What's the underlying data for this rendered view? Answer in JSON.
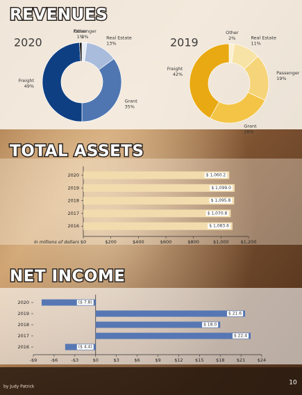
{
  "chart_data": [
    {
      "type": "donut",
      "section_title": "REVENUES",
      "title": "2020",
      "categories": [
        "Passenger",
        "Real Estate",
        "Grant",
        "Freight",
        "Other"
      ],
      "values": [
        2,
        13,
        35,
        49,
        1
      ],
      "value_labels": [
        "2%",
        "13%",
        "35%",
        "49%",
        "1%"
      ],
      "colors": [
        "#e6ecf5",
        "#a9bcdc",
        "#4f76b1",
        "#0e3f83",
        "#1c1c1c"
      ]
    },
    {
      "type": "donut",
      "title": "2019",
      "categories": [
        "Other",
        "Real Estate",
        "Passenger",
        "Grant",
        "Freight"
      ],
      "values": [
        2,
        11,
        19,
        26,
        42
      ],
      "value_labels": [
        "2%",
        "11%",
        "19%",
        "26%",
        "42%"
      ],
      "colors": [
        "#fbefd0",
        "#f8e3a6",
        "#f6d47a",
        "#f3c446",
        "#e9a912"
      ]
    },
    {
      "type": "bar",
      "orientation": "horizontal",
      "title": "TOTAL ASSETS",
      "categories": [
        "2020",
        "2019",
        "2018",
        "2017",
        "2016"
      ],
      "values": [
        1060.2,
        1099.0,
        1095.8,
        1070.8,
        1083.6
      ],
      "value_labels": [
        "$ 1,060.2",
        "$ 1,099.0",
        "$ 1,095.8",
        "$ 1,070.8",
        "$ 1,083.6"
      ],
      "color": "#f2dcae",
      "xlim": [
        0,
        1200
      ],
      "xticks": [
        {
          "value": 0,
          "label": "$0"
        },
        {
          "value": 200,
          "label": "$200"
        },
        {
          "value": 400,
          "label": "$400"
        },
        {
          "value": 600,
          "label": "$600"
        },
        {
          "value": 800,
          "label": "$800"
        },
        {
          "value": 1000,
          "label": "$1,000"
        },
        {
          "value": 1200,
          "label": "$1,200"
        }
      ],
      "x_label": "in millions of dollars",
      "grid": false
    },
    {
      "type": "bar",
      "orientation": "horizontal",
      "title": "NET INCOME",
      "categories": [
        "2020",
        "2019",
        "2018",
        "2017",
        "2016"
      ],
      "values": [
        -7.8,
        21.6,
        18.0,
        22.4,
        -4.4
      ],
      "value_labels": [
        "($ 7.8)",
        "$ 21.6",
        "$ 18.0",
        "$ 22.4",
        "($ 4.4)"
      ],
      "color": "#5677b4",
      "xlim": [
        -9,
        24
      ],
      "xticks": [
        {
          "value": -9,
          "label": "-$9"
        },
        {
          "value": -6,
          "label": "-$6"
        },
        {
          "value": -3,
          "label": "-$3"
        },
        {
          "value": 0,
          "label": "$0"
        },
        {
          "value": 3,
          "label": "$3"
        },
        {
          "value": 6,
          "label": "$6"
        },
        {
          "value": 9,
          "label": "$9"
        },
        {
          "value": 12,
          "label": "$12"
        },
        {
          "value": 15,
          "label": "$15"
        },
        {
          "value": 18,
          "label": "$18"
        },
        {
          "value": 21,
          "label": "$21"
        },
        {
          "value": 24,
          "label": "$24"
        }
      ],
      "grid": false
    }
  ],
  "footer": {
    "credit": "by Judy Patrick",
    "page_number": "10"
  }
}
